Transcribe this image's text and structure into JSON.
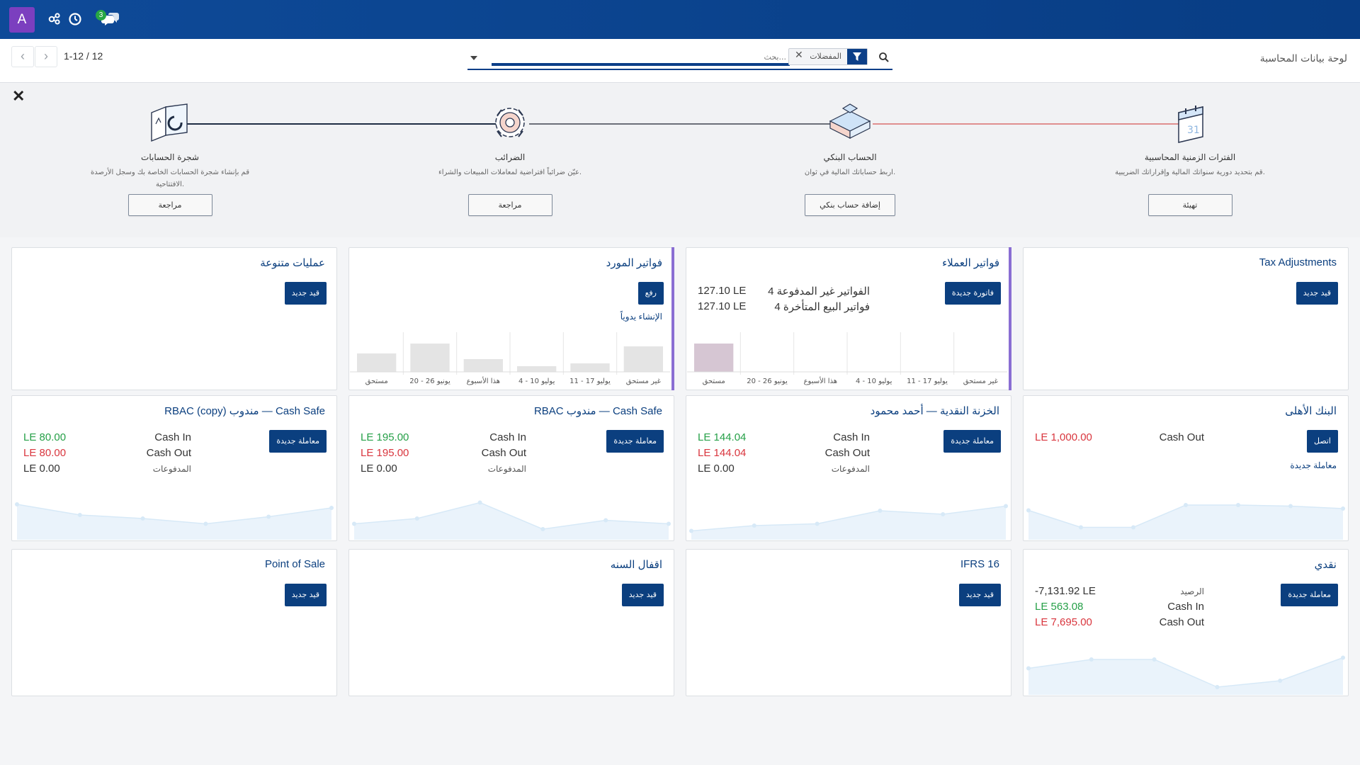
{
  "topbar": {
    "avatar_letter": "A",
    "chat_badge": "3"
  },
  "control": {
    "page_title": "لوحة بيانات المحاسبة",
    "pager": "1-12 / 12",
    "filter_tag": "المفضلات",
    "search_placeholder": "بحث..."
  },
  "onboarding": {
    "steps": [
      {
        "title": "الفترات الزمنية المحاسبية",
        "desc": "قم بتحديد دورية سنواتك المالية وإقراراتك الضريبية.",
        "button": "تهيئة",
        "icon": "calendar-icon"
      },
      {
        "title": "الحساب البنكي",
        "desc": "اربط حساباتك المالية في ثوان.",
        "button": "إضافة حساب بنكي",
        "icon": "bank-puzzle-icon"
      },
      {
        "title": "الضرائب",
        "desc": "عيّن ضرائباً افتراضية لمعاملات المبيعات والشراء.",
        "button": "مراجعة",
        "icon": "gear-icon"
      },
      {
        "title": "شجرة الحسابات",
        "desc": "قم بإنشاء شجرة الحسابات الخاصة بك وسجل الأرصدة الافتتاحية.",
        "button": "مراجعة",
        "icon": "chart-of-accounts-icon"
      }
    ]
  },
  "cards": {
    "tax_adjustments": {
      "title": "Tax Adjustments",
      "button": "قيد جديد"
    },
    "customer_invoices": {
      "title": "فواتير العملاء",
      "button": "فاتورة جديدة",
      "unpaid_label": "4 الفواتير غير المدفوعة",
      "unpaid_value": "127.10 LE",
      "late_label": "4 فواتير البيع المتأخرة",
      "late_value": "127.10 LE",
      "chart_labels": [
        "غير مستحق",
        "11 - 17 يوليو",
        "4 - 10 يوليو",
        "هذا الأسبوع",
        "20 - 26 يونيو",
        "مستحق"
      ]
    },
    "vendor_bills": {
      "title": "فواتير المورد",
      "button": "رفع",
      "link": "الإنشاء يدوياً",
      "chart_labels": [
        "غير مستحق",
        "11 - 17 يوليو",
        "4 - 10 يوليو",
        "هذا الأسبوع",
        "20 - 26 يونيو",
        "مستحق"
      ]
    },
    "misc_ops": {
      "title": "عمليات متنوعة",
      "button": "قيد جديد"
    },
    "ahly_bank": {
      "title": "البنك الأهلى",
      "button": "اتصل",
      "link": "معاملة جديدة",
      "cash_out_label": "Cash Out",
      "cash_out_value": "LE 1,000.00"
    },
    "treasury_ahmed": {
      "title": "الخزنة النقدية — أحمد محمود",
      "button": "معاملة جديدة",
      "cash_in_label": "Cash In",
      "cash_in_value": "LE 144.04",
      "cash_out_label": "Cash Out",
      "cash_out_value": "LE 144.04",
      "payments_label": "المدفوعات",
      "payments_value": "LE 0.00"
    },
    "rbac_cash_safe": {
      "title": "RBAC مندوب — Cash Safe",
      "button": "معاملة جديدة",
      "cash_in_label": "Cash In",
      "cash_in_value": "LE 195.00",
      "cash_out_label": "Cash Out",
      "cash_out_value": "LE 195.00",
      "payments_label": "المدفوعات",
      "payments_value": "LE 0.00"
    },
    "rbac_copy_cash_safe": {
      "title": "RBAC (copy) مندوب — Cash Safe",
      "button": "معاملة جديدة",
      "cash_in_label": "Cash In",
      "cash_in_value": "LE 80.00",
      "cash_out_label": "Cash Out",
      "cash_out_value": "LE 80.00",
      "payments_label": "المدفوعات",
      "payments_value": "LE 0.00"
    },
    "cash": {
      "title": "نقدي",
      "button": "معاملة جديدة",
      "balance_label": "الرصيد",
      "balance_value": "-7,131.92 LE",
      "cash_in_label": "Cash In",
      "cash_in_value": "LE 563.08",
      "cash_out_label": "Cash Out",
      "cash_out_value": "LE 7,695.00"
    },
    "ifrs16": {
      "title": "IFRS 16",
      "button": "قيد جديد"
    },
    "year_close": {
      "title": "اقفال السنه",
      "button": "قيد جديد"
    },
    "pos": {
      "title": "Point of Sale",
      "button": "قيد جديد"
    }
  },
  "chart_data": [
    {
      "type": "bar",
      "title": "",
      "categories": [
        "مستحق",
        "20 - 26 يونيو",
        "هذا الأسبوع",
        "4 - 10 يوليو",
        "11 - 17 يوليو",
        "غير مستحق"
      ],
      "values": [
        127.1,
        0,
        0,
        0,
        0,
        0
      ],
      "color": "#d6c6d3"
    },
    {
      "type": "bar",
      "title": "",
      "categories": [
        "مستحق",
        "20 - 26 يونيو",
        "هذا الأسبوع",
        "4 - 10 يوليو",
        "11 - 17 يوليو",
        "غير مستحق"
      ],
      "values": [
        26,
        40,
        18,
        8,
        12,
        36
      ],
      "color": "#e4e4e4",
      "sample": true
    },
    {
      "type": "area",
      "title": "",
      "values": [
        0.63,
        0.15,
        0.15,
        0.78,
        0.78,
        0.75,
        0.68
      ],
      "color": "#d7e9f7"
    },
    {
      "type": "area",
      "title": "",
      "values": [
        0.05,
        0.2,
        0.25,
        0.62,
        0.52,
        0.75
      ],
      "color": "#d7e9f7"
    },
    {
      "type": "area",
      "title": "",
      "values": [
        0.25,
        0.4,
        0.85,
        0.1,
        0.35,
        0.25
      ],
      "color": "#d7e9f7"
    },
    {
      "type": "area",
      "title": "",
      "values": [
        0.8,
        0.5,
        0.4,
        0.25,
        0.45,
        0.7
      ],
      "color": "#d7e9f7"
    },
    {
      "type": "area",
      "title": "",
      "values": [
        0.55,
        0.8,
        0.8,
        0.02,
        0.2,
        0.85
      ],
      "color": "#d7e9f7"
    }
  ]
}
